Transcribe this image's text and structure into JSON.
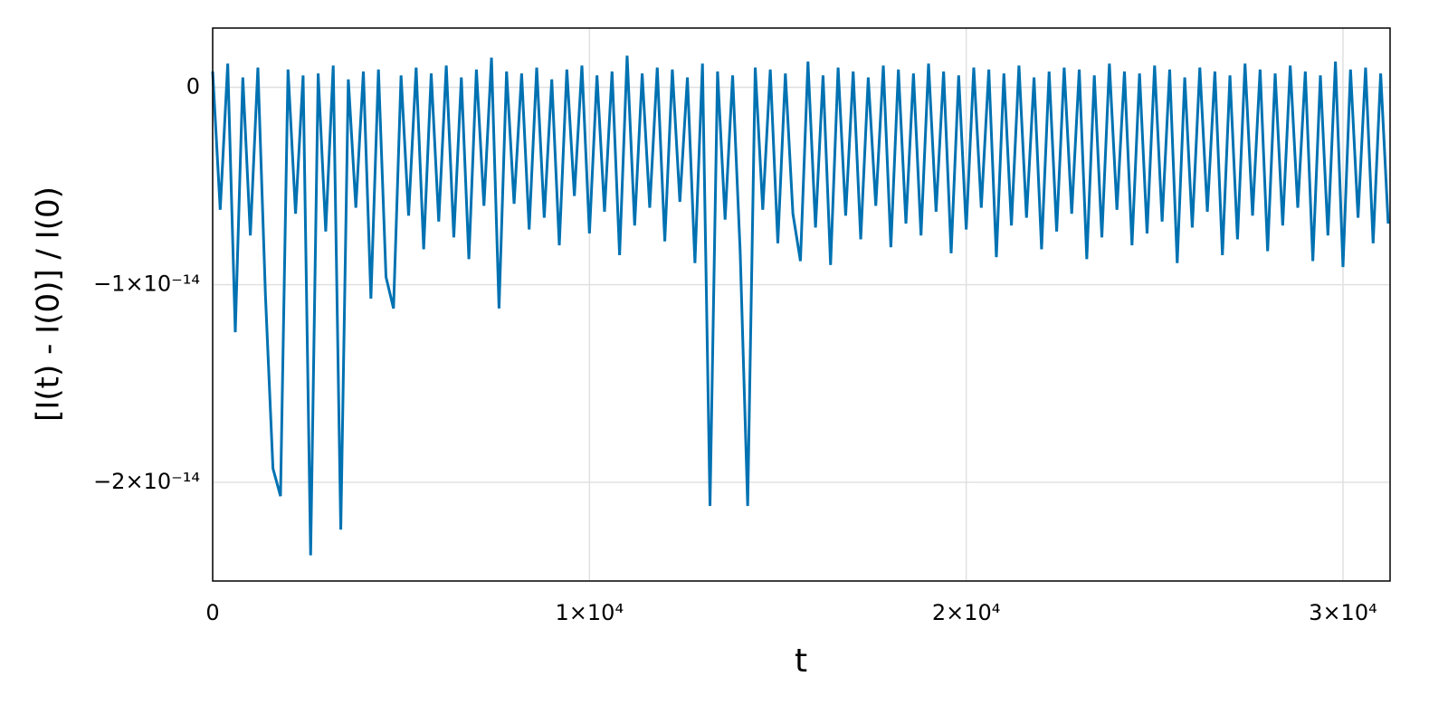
{
  "chart_data": {
    "type": "line",
    "xlabel": "t",
    "ylabel": "[I(t) - I(0)] / I(0)",
    "color": "#0072b2",
    "grid": true,
    "xlim": [
      0,
      31250
    ],
    "ylim": [
      -2.5e-14,
      3e-15
    ],
    "xticks": [
      0,
      {
        "value": 10000,
        "label": "1×10⁴"
      },
      {
        "value": 20000,
        "label": "2×10⁴"
      },
      {
        "value": 30000,
        "label": "3×10⁴"
      }
    ],
    "yticks": [
      0,
      {
        "value": -1e-14,
        "label": "−1×10⁻¹⁴"
      },
      {
        "value": -2e-14,
        "label": "−2×10⁻¹⁴"
      }
    ],
    "x": [
      0,
      200,
      400,
      600,
      800,
      1000,
      1200,
      1400,
      1600,
      1800,
      2000,
      2200,
      2400,
      2600,
      2800,
      3000,
      3200,
      3400,
      3600,
      3800,
      4000,
      4200,
      4400,
      4600,
      4800,
      5000,
      5200,
      5400,
      5600,
      5800,
      6000,
      6200,
      6400,
      6600,
      6800,
      7000,
      7200,
      7400,
      7600,
      7800,
      8000,
      8200,
      8400,
      8600,
      8800,
      9000,
      9200,
      9400,
      9600,
      9800,
      10000,
      10200,
      10400,
      10600,
      10800,
      11000,
      11200,
      11400,
      11600,
      11800,
      12000,
      12200,
      12400,
      12600,
      12800,
      13000,
      13200,
      13400,
      13600,
      13800,
      14000,
      14200,
      14400,
      14600,
      14800,
      15000,
      15200,
      15400,
      15600,
      15800,
      16000,
      16200,
      16400,
      16600,
      16800,
      17000,
      17200,
      17400,
      17600,
      17800,
      18000,
      18200,
      18400,
      18600,
      18800,
      19000,
      19200,
      19400,
      19600,
      19800,
      20000,
      20200,
      20400,
      20600,
      20800,
      21000,
      21200,
      21400,
      21600,
      21800,
      22000,
      22200,
      22400,
      22600,
      22800,
      23000,
      23200,
      23400,
      23600,
      23800,
      24000,
      24200,
      24400,
      24600,
      24800,
      25000,
      25200,
      25400,
      25600,
      25800,
      26000,
      26200,
      26400,
      26600,
      26800,
      27000,
      27200,
      27400,
      27600,
      27800,
      28000,
      28200,
      28400,
      28600,
      28800,
      29000,
      29200,
      29400,
      29600,
      29800,
      30000,
      30200,
      30400,
      30600,
      30800,
      31000,
      31200
    ],
    "values": [
      8e-16,
      -6.2e-15,
      1.2e-15,
      -1.24e-14,
      5e-16,
      -7.5e-15,
      1e-15,
      -1.05e-14,
      -1.93e-14,
      -2.07e-14,
      9e-16,
      -6.4e-15,
      6e-16,
      -2.37e-14,
      7e-16,
      -7.3e-15,
      1.1e-15,
      -2.24e-14,
      4e-16,
      -6.1e-15,
      8e-16,
      -1.07e-14,
      9e-16,
      -9.6e-15,
      -1.12e-14,
      6e-16,
      -6.5e-15,
      1e-15,
      -8.2e-15,
      7e-16,
      -6.8e-15,
      1.1e-15,
      -7.6e-15,
      5e-16,
      -8.7e-15,
      9e-16,
      -6e-15,
      1.5e-15,
      -1.12e-14,
      8e-16,
      -5.9e-15,
      7e-16,
      -7.2e-15,
      1e-15,
      -6.6e-15,
      4e-16,
      -8e-15,
      9e-16,
      -5.5e-15,
      1.1e-15,
      -7.4e-15,
      6e-16,
      -6.3e-15,
      8e-16,
      -8.5e-15,
      1.6e-15,
      -7e-15,
      7e-16,
      -6.1e-15,
      1e-15,
      -7.8e-15,
      9e-16,
      -5.8e-15,
      5e-16,
      -8.9e-15,
      1.2e-15,
      -2.12e-14,
      8e-16,
      -6.7e-15,
      6e-16,
      -8.3e-15,
      -2.12e-14,
      1e-15,
      -6.2e-15,
      9e-16,
      -7.9e-15,
      7e-16,
      -6.4e-15,
      -8.8e-15,
      1.3e-15,
      -7.1e-15,
      6e-16,
      -9e-15,
      1e-15,
      -6.5e-15,
      8e-16,
      -7.7e-15,
      5e-16,
      -6e-15,
      1.1e-15,
      -8.1e-15,
      9e-16,
      -6.9e-15,
      7e-16,
      -7.5e-15,
      1.2e-15,
      -6.3e-15,
      8e-16,
      -8.4e-15,
      6e-16,
      -7.2e-15,
      1e-15,
      -6.1e-15,
      9e-16,
      -8.6e-15,
      7e-16,
      -7e-15,
      1.1e-15,
      -6.6e-15,
      5e-16,
      -8.2e-15,
      8e-16,
      -7.3e-15,
      1e-15,
      -6.4e-15,
      9e-16,
      -8.7e-15,
      6e-16,
      -7.6e-15,
      1.2e-15,
      -6.2e-15,
      8e-16,
      -8e-15,
      7e-16,
      -7.4e-15,
      1.1e-15,
      -6.8e-15,
      9e-16,
      -8.9e-15,
      5e-16,
      -7.1e-15,
      1e-15,
      -6.3e-15,
      8e-16,
      -8.5e-15,
      6e-16,
      -7.7e-15,
      1.2e-15,
      -6.5e-15,
      9e-16,
      -8.3e-15,
      7e-16,
      -7e-15,
      1.1e-15,
      -6.1e-15,
      8e-16,
      -8.8e-15,
      6e-16,
      -7.5e-15,
      1.3e-15,
      -9.1e-15,
      9e-16,
      -6.6e-15,
      1e-15,
      -7.9e-15,
      7e-16,
      -6.9e-15
    ]
  }
}
